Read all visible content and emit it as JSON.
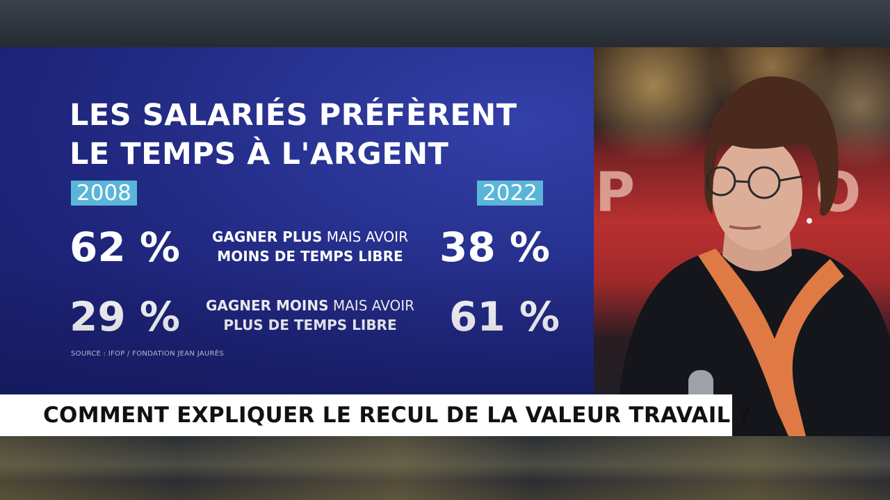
{
  "infographic": {
    "title_line1": "LES SALARIÉS PRÉFÈRENT",
    "title_line2": "LE TEMPS À L'ARGENT",
    "year_left": "2008",
    "year_right": "2022",
    "rows": [
      {
        "left_value": "62 %",
        "label_bold_1": "GAGNER PLUS",
        "label_regular_1": " MAIS AVOIR",
        "label_line2": "MOINS DE TEMPS LIBRE",
        "right_value": "38 %"
      },
      {
        "left_value": "29 %",
        "label_bold_1": "GAGNER MOINS",
        "label_regular_1": " MAIS AVOIR",
        "label_line2": "PLUS DE TEMPS LIBRE",
        "right_value": "61 %"
      }
    ],
    "source": "SOURCE : IFOP / FONDATION JEAN JAURÈS"
  },
  "studio": {
    "screen_letters": [
      "P",
      "O"
    ]
  },
  "banner": {
    "headline": "COMMENT EXPLIQUER LE RECUL DE LA VALEUR TRAVAIL ?"
  },
  "colors": {
    "infographic_bg": "#1d2377",
    "year_badge": "#5ab6d8",
    "banner_bg": "#ffffff",
    "banner_text": "#111111",
    "cardigan_trim": "#e07a45"
  }
}
